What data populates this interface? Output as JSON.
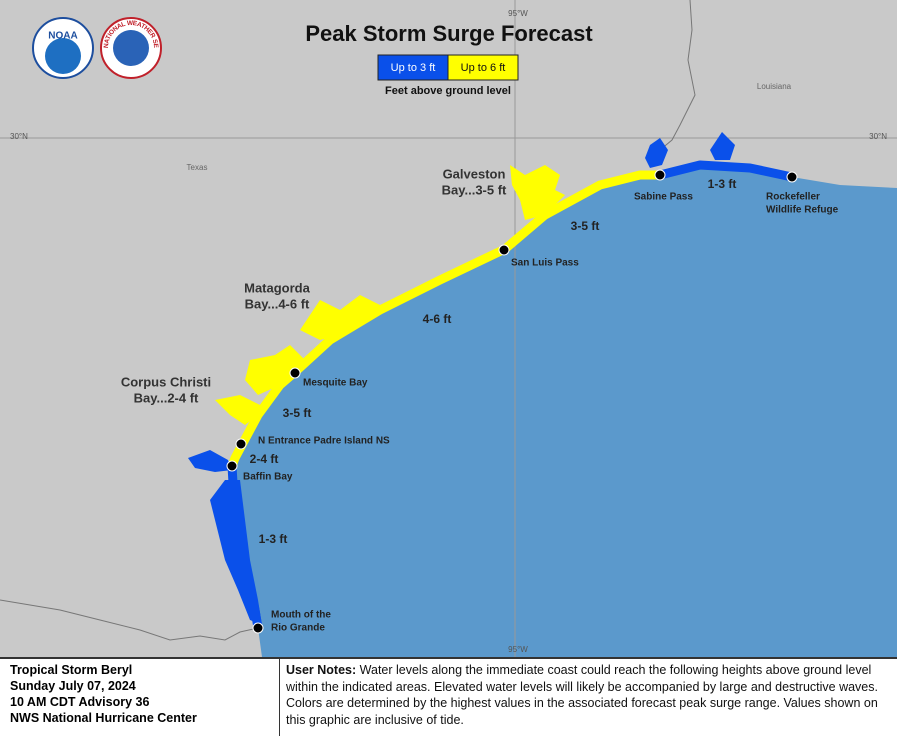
{
  "header": {
    "title": "Peak Storm Surge Forecast",
    "legend": [
      {
        "label": "Up to 3 ft",
        "color": "#0a50ea"
      },
      {
        "label": "Up to 6 ft",
        "color": "#ffff00"
      }
    ],
    "legend_note": "Feet above ground level"
  },
  "logos": {
    "noaa": "NOAA",
    "nws": "NATIONAL WEATHER SERVICE"
  },
  "map": {
    "grid_labels": {
      "longitude": "95°W",
      "latitude": "30°N"
    },
    "regions": [
      "Texas",
      "Louisiana"
    ],
    "bays": [
      {
        "lines": [
          "Galveston",
          "Bay...3-5 ft"
        ]
      },
      {
        "lines": [
          "Matagorda",
          "Bay...4-6 ft"
        ]
      },
      {
        "lines": [
          "Corpus Christi",
          "Bay...2-4 ft"
        ]
      }
    ],
    "points": [
      {
        "lines": [
          "Sabine Pass"
        ]
      },
      {
        "lines": [
          "Rockefeller",
          "Wildlife Refuge"
        ]
      },
      {
        "lines": [
          "San Luis Pass"
        ]
      },
      {
        "lines": [
          "Mesquite Bay"
        ]
      },
      {
        "lines": [
          "N Entrance Padre Island NS"
        ]
      },
      {
        "lines": [
          "Baffin Bay"
        ]
      },
      {
        "lines": [
          "Mouth of the",
          "Rio Grande"
        ]
      }
    ],
    "segments": [
      "1-3 ft",
      "3-5 ft",
      "4-6 ft",
      "3-5 ft",
      "2-4 ft",
      "1-3 ft"
    ]
  },
  "footer": {
    "storm": [
      "Tropical Storm Beryl",
      "Sunday July 07, 2024",
      "10 AM CDT Advisory 36",
      "NWS National Hurricane Center"
    ],
    "notes_label": "User Notes:",
    "notes": "Water levels along the immediate coast could reach the following heights above ground level within the indicated areas. Elevated water levels will likely be accompanied by large and destructive waves. Colors are determined by the highest values in the associated forecast peak surge range. Values shown on this graphic are inclusive of tide."
  }
}
